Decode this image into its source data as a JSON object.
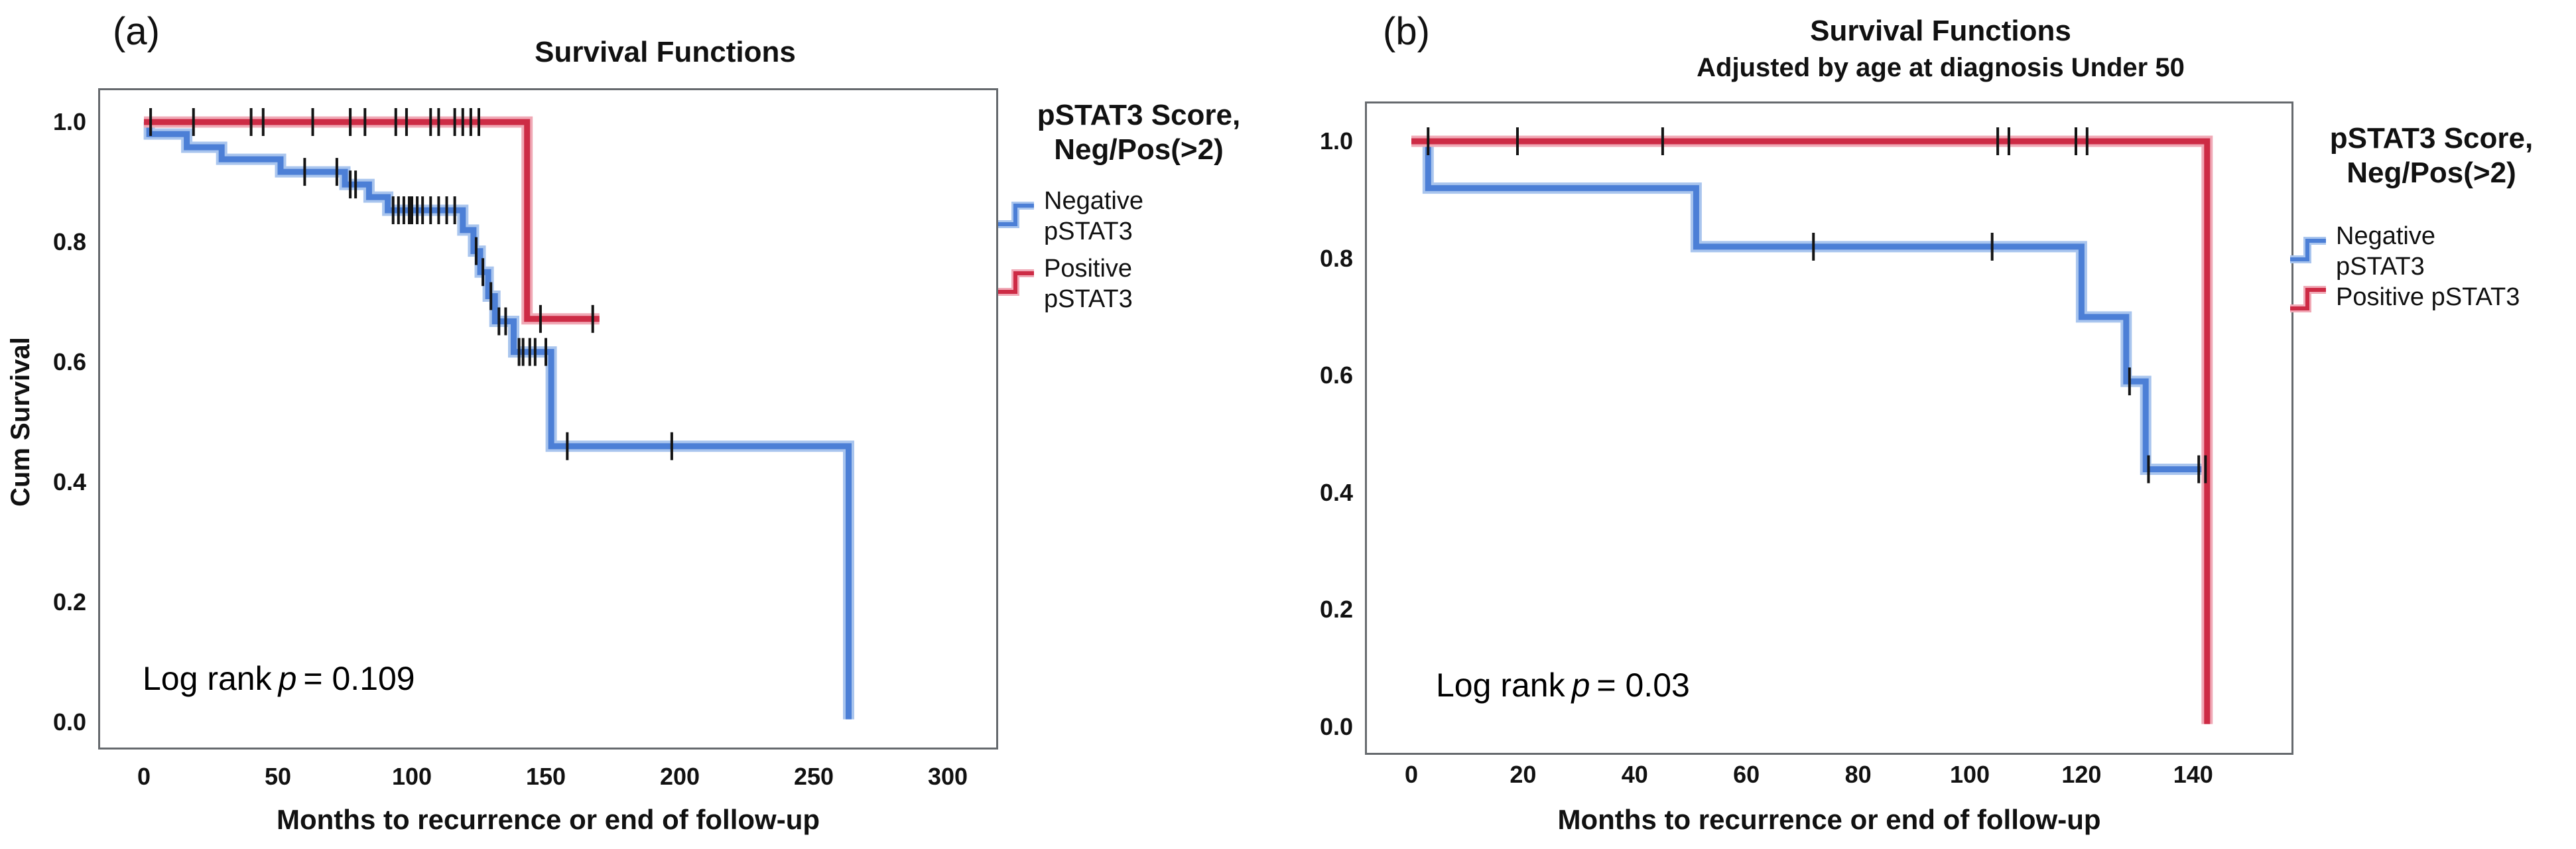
{
  "figure": {
    "panels": [
      {
        "panel_label": "(a)",
        "title": "Survival Functions",
        "subtitle": "",
        "y_axis": {
          "title": "Cum Survival",
          "ticks": [
            "1.0",
            "0.8",
            "0.6",
            "0.4",
            "0.2",
            "0.0"
          ]
        },
        "x_axis": {
          "title": "Months to recurrence or end of follow-up",
          "ticks": [
            "0",
            "50",
            "100",
            "150",
            "200",
            "250",
            "300"
          ]
        },
        "stats": {
          "prefix": "Log rank",
          "p": "p",
          "rest": "= 0.109"
        },
        "legend": {
          "title_lines": [
            "pSTAT3 Score,",
            "Neg/Pos(>2)"
          ],
          "items": [
            {
              "lines": [
                "Negative",
                "pSTAT3"
              ],
              "series": "negative"
            },
            {
              "lines": [
                "Positive",
                "pSTAT3"
              ],
              "series": "positive"
            }
          ]
        }
      },
      {
        "panel_label": "(b)",
        "title": "Survival Functions",
        "subtitle": "Adjusted by age at diagnosis Under 50",
        "y_axis": {
          "title": "",
          "ticks": [
            "1.0",
            "0.8",
            "0.6",
            "0.4",
            "0.2",
            "0.0"
          ]
        },
        "x_axis": {
          "title": "Months to recurrence or end of follow-up",
          "ticks": [
            "0",
            "20",
            "40",
            "60",
            "80",
            "100",
            "120",
            "140"
          ]
        },
        "stats": {
          "prefix": "Log rank",
          "p": "p",
          "rest": "= 0.03"
        },
        "legend": {
          "title_lines": [
            "pSTAT3 Score,",
            "Neg/Pos(>2)"
          ],
          "items": [
            {
              "lines": [
                "Negative",
                "pSTAT3"
              ],
              "series": "negative"
            },
            {
              "lines": [
                "Positive pSTAT3"
              ],
              "series": "positive"
            }
          ]
        }
      }
    ]
  },
  "chart_data": [
    {
      "type": "line",
      "subtype": "kaplan-meier-step",
      "title": "Survival Functions",
      "subtitle": "",
      "xlabel": "Months to recurrence or end of follow-up",
      "ylabel": "Cum Survival",
      "xlim": [
        0,
        318
      ],
      "ylim": [
        -0.05,
        1.06
      ],
      "x_ticks": [
        0,
        50,
        100,
        150,
        200,
        250,
        300
      ],
      "y_ticks": [
        1.0,
        0.8,
        0.6,
        0.4,
        0.2,
        0.0
      ],
      "grid": false,
      "legend_position": "right",
      "annotation_log_rank_p": 0.109,
      "series": [
        {
          "name": "Negative pSTAT3",
          "color": "#4C7FD6",
          "halo_color": "#A9C5EE",
          "steps": [
            [
              0,
              1.0
            ],
            [
              2,
              0.98
            ],
            [
              16,
              0.958
            ],
            [
              29,
              0.938
            ],
            [
              51,
              0.917
            ],
            [
              75,
              0.896
            ],
            [
              84,
              0.875
            ],
            [
              91,
              0.853
            ],
            [
              119,
              0.82
            ],
            [
              123,
              0.785
            ],
            [
              125.5,
              0.75
            ],
            [
              128.5,
              0.71
            ],
            [
              131,
              0.668
            ],
            [
              138,
              0.617
            ],
            [
              152,
              0.46
            ],
            [
              263,
              0.005
            ]
          ],
          "end": 263,
          "censors": [
            60,
            72,
            77,
            79,
            93,
            95,
            97,
            99,
            100,
            102,
            104,
            107,
            110,
            113,
            116,
            124,
            126.5,
            129.5,
            132.5,
            135,
            140,
            141.5,
            144,
            146,
            150,
            158,
            197
          ]
        },
        {
          "name": "Positive pSTAT3",
          "color": "#CD2B45",
          "halo_color": "#F0A9B6",
          "steps": [
            [
              0,
              1.0
            ],
            [
              143,
              0.672
            ]
          ],
          "end": 170,
          "censors": [
            2.5,
            18.5,
            40,
            44.5,
            63,
            77,
            82.5,
            94,
            98,
            107,
            110,
            116,
            119,
            122,
            125,
            148,
            167.5
          ]
        }
      ]
    },
    {
      "type": "line",
      "subtype": "kaplan-meier-step",
      "title": "Survival Functions",
      "subtitle": "Adjusted by age at diagnosis Under 50",
      "xlabel": "Months to recurrence or end of follow-up",
      "ylabel": "",
      "xlim": [
        0,
        158
      ],
      "ylim": [
        -0.05,
        1.06
      ],
      "x_ticks": [
        0,
        20,
        40,
        60,
        80,
        100,
        120,
        140
      ],
      "y_ticks": [
        1.0,
        0.8,
        0.6,
        0.4,
        0.2,
        0.0
      ],
      "grid": false,
      "legend_position": "right",
      "annotation_log_rank_p": 0.03,
      "series": [
        {
          "name": "Negative pSTAT3",
          "color": "#4C7FD6",
          "halo_color": "#A9C5EE",
          "steps": [
            [
              0,
              1.0
            ],
            [
              3,
              0.92
            ],
            [
              51,
              0.82
            ],
            [
              120,
              0.7
            ],
            [
              128,
              0.59
            ],
            [
              131.5,
              0.44
            ]
          ],
          "end": 142.5,
          "censors": [
            72,
            104,
            128.6,
            132,
            141,
            142.2
          ]
        },
        {
          "name": "Positive pSTAT3",
          "color": "#CD2B45",
          "halo_color": "#F0A9B6",
          "steps": [
            [
              0,
              1.0
            ],
            [
              142.5,
              0.005
            ]
          ],
          "end": 142.5,
          "censors": [
            3,
            19,
            45,
            105,
            107,
            119,
            121
          ]
        }
      ]
    }
  ]
}
